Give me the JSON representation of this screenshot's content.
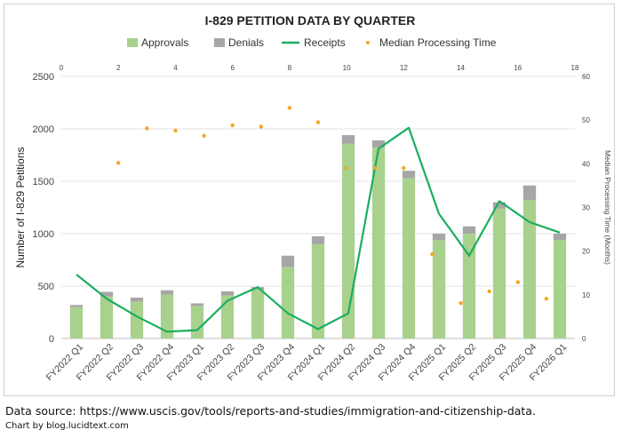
{
  "chart_data": {
    "type": "bar",
    "title": "I-829 PETITION DATA BY QUARTER",
    "ylabel": "Number of I-829 Petitions",
    "y2label": "Median Processing Time (Months)",
    "xlabel": "",
    "ylim": [
      0,
      2500
    ],
    "yticks": [
      0,
      500,
      1000,
      1500,
      2000,
      2500
    ],
    "y2lim": [
      0,
      60
    ],
    "y2ticks": [
      0,
      10,
      20,
      30,
      40,
      50,
      60
    ],
    "x2lim": [
      0,
      18
    ],
    "x2ticks": [
      0,
      2,
      4,
      6,
      8,
      10,
      12,
      14,
      16,
      18
    ],
    "stacked": true,
    "grid": true,
    "legend_position": "top",
    "categories": [
      "FY2022 Q1",
      "FY2022 Q2",
      "FY2022 Q3",
      "FY2022 Q4",
      "FY2023 Q1",
      "FY2023 Q2",
      "FY2023 Q3",
      "FY2023 Q4",
      "FY2024 Q1",
      "FY2024 Q2",
      "FY2024 Q3",
      "FY2024 Q4",
      "FY2025 Q1",
      "FY2025 Q2",
      "FY2025 Q3",
      "FY2025 Q4",
      "FY2026 Q1"
    ],
    "series": [
      {
        "name": "Approvals",
        "kind": "bar",
        "color": "#a9d18e",
        "values": [
          300,
          400,
          350,
          420,
          310,
          410,
          470,
          680,
          900,
          1860,
          1820,
          1530,
          940,
          1000,
          1240,
          1320,
          940
        ]
      },
      {
        "name": "Denials",
        "kind": "bar",
        "color": "#a6a6a6",
        "values": [
          20,
          45,
          40,
          40,
          25,
          40,
          20,
          110,
          75,
          80,
          70,
          70,
          60,
          70,
          60,
          140,
          60
        ]
      },
      {
        "name": "Receipts",
        "kind": "line",
        "color": "#1aae5f",
        "values": [
          610,
          380,
          210,
          65,
          80,
          360,
          490,
          240,
          90,
          240,
          1810,
          2010,
          1190,
          790,
          1310,
          1110,
          1010
        ]
      },
      {
        "name": "Median Processing Time",
        "kind": "scatter",
        "axis": "y2",
        "color": "#f5a623",
        "points": [
          {
            "x": 2,
            "y": 40.2
          },
          {
            "x": 3,
            "y": 48.1
          },
          {
            "x": 4,
            "y": 47.6
          },
          {
            "x": 5,
            "y": 46.4
          },
          {
            "x": 6,
            "y": 48.8
          },
          {
            "x": 7,
            "y": 48.5
          },
          {
            "x": 8,
            "y": 52.8
          },
          {
            "x": 9,
            "y": 49.5
          },
          {
            "x": 10,
            "y": 39
          },
          {
            "x": 11,
            "y": 39
          },
          {
            "x": 12,
            "y": 39
          },
          {
            "x": 13,
            "y": 19.3
          },
          {
            "x": 14,
            "y": 8.1
          },
          {
            "x": 15,
            "y": 10.8
          },
          {
            "x": 16,
            "y": 12.9
          },
          {
            "x": 17,
            "y": 9.1
          }
        ]
      }
    ]
  },
  "footer": {
    "source": "Data source: https://www.uscis.gov/tools/reports-and-studies/immigration-and-citizenship-data.",
    "credit": "Chart by blog.lucidtext.com"
  }
}
